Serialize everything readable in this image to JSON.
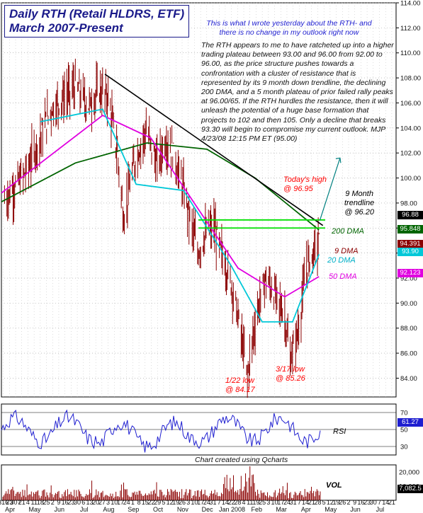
{
  "title": {
    "line1": "Daily RTH (Retail HLDRS, ETF)",
    "line2": "March 2007-Present"
  },
  "note": {
    "headline": "This is what I wrote yesterday about the RTH- and there is no change in my outlook right now",
    "body": "The RTH appears to me to have ratcheted up into a higher trading plateau between 93.00 and 96.00 from 92.00 to 96.00, as the price structure pushes towards a confrontation with a cluster of resistance that is represented by its 9 month down trendline, the declining 200 DMA, and a 5 month plateau of prior failed rally peaks at 96.00/65. If the RTH hurdles the resistance, then it will unleash the potential of a huge base formation that projects to 102 and then 105. Only a decline that breaks 93.30 will begin to compromise my current outlook.  MJP  4/23/08  12:15 PM ET (95.00)"
  },
  "annotations": {
    "todays_high": "Today's high\n@ 96.95",
    "trendline": "9 Month\ntrendline\n@ 96.20",
    "dma200": "200 DMA",
    "dma9": "9 DMA",
    "dma20": "20 DMA",
    "dma50": "50 DMA",
    "low1": "1/22 low\n@ 84.17",
    "low2": "3/17 low\n@ 85.26",
    "rsi": "RSI",
    "vol": "VOL"
  },
  "badges": {
    "last": "96.88",
    "dma200": "95.848",
    "dma9": "94.391",
    "dma20": "93.90",
    "dma50": "92.123",
    "rsi": "61.27",
    "vol": "7,082.5"
  },
  "credit": "Chart created using Qcharts",
  "colors": {
    "price": "#8b0000",
    "dma200": "#006400",
    "dma20": "#00c8d8",
    "dma50": "#e000e0",
    "dma9": "#000000",
    "trendline": "#000000",
    "resistance": "#00e000",
    "rsi": "#1f1fd0",
    "arrow": "#008080",
    "title": "#1a1a8a",
    "note_headline": "#1f1fd0",
    "annotation_red": "#ff0000"
  },
  "chart_data": {
    "type": "line",
    "title": "Daily RTH (Retail HLDRS, ETF)",
    "subtitle": "March 2007-Present",
    "y_axis": {
      "ticks": [
        84,
        86,
        88,
        90,
        92,
        94,
        96,
        98,
        100,
        102,
        104,
        106,
        108,
        110,
        112,
        114
      ],
      "range": [
        82.5,
        114
      ],
      "position": "right"
    },
    "x_axis": {
      "ticks": [
        "316",
        "23",
        "307",
        "21",
        "4",
        "11",
        "18",
        "25",
        "2",
        "9",
        "16",
        "23",
        "30",
        "6",
        "13",
        "20",
        "27",
        "3",
        "10",
        "17",
        "24",
        "1",
        "8",
        "15",
        "22",
        "29",
        "5",
        "12",
        "19",
        "26",
        "3",
        "10",
        "17",
        "24",
        "31",
        "7",
        "14",
        "22",
        "28",
        "4",
        "11",
        "19",
        "25",
        "3",
        "10",
        "17",
        "24",
        "31",
        "7",
        "14",
        "21",
        "28",
        "5",
        "12",
        "19",
        "26",
        "2",
        "9",
        "16",
        "23",
        "30",
        "7",
        "14",
        "21"
      ],
      "months": [
        "Apr",
        "May",
        "Jun",
        "Jul",
        "Aug",
        "Sep",
        "Oct",
        "Nov",
        "Dec",
        "Jan 2008",
        "Feb",
        "Mar",
        "Apr",
        "May",
        "Jun",
        "Jul"
      ],
      "range": [
        "2007-03-12",
        "2008-07-31"
      ]
    },
    "series": [
      {
        "name": "RTH daily close (approx)",
        "x": [
          "2007-03-16",
          "2007-04-13",
          "2007-05-15",
          "2007-06-01",
          "2007-06-15",
          "2007-07-02",
          "2007-07-16",
          "2007-07-27",
          "2007-08-08",
          "2007-08-16",
          "2007-08-31",
          "2007-09-14",
          "2007-09-28",
          "2007-10-08",
          "2007-10-19",
          "2007-11-05",
          "2007-11-19",
          "2007-11-30",
          "2007-12-10",
          "2007-12-20",
          "2008-01-04",
          "2008-01-15",
          "2008-01-22",
          "2008-02-01",
          "2008-02-14",
          "2008-02-28",
          "2008-03-10",
          "2008-03-17",
          "2008-03-28",
          "2008-04-07",
          "2008-04-15",
          "2008-04-23"
        ],
        "values": [
          98.2,
          100.5,
          105.5,
          106.5,
          107.3,
          105.8,
          107.0,
          106.5,
          102.0,
          96.8,
          101.5,
          103.8,
          101.0,
          103.0,
          102.0,
          98.0,
          94.0,
          95.5,
          96.0,
          94.0,
          91.0,
          87.0,
          84.2,
          88.5,
          92.0,
          90.5,
          89.0,
          85.3,
          88.0,
          93.0,
          94.0,
          95.0
        ]
      },
      {
        "name": "200 DMA",
        "x": [
          "2007-03-12",
          "2007-06-15",
          "2007-09-15",
          "2007-12-01",
          "2008-02-01",
          "2008-04-23"
        ],
        "values": [
          98.1,
          101.2,
          102.8,
          102.3,
          100.0,
          95.85
        ]
      },
      {
        "name": "50 DMA",
        "x": [
          "2007-03-12",
          "2007-07-20",
          "2007-09-20",
          "2007-11-20",
          "2008-01-10",
          "2008-03-10",
          "2008-04-23"
        ],
        "values": [
          98.8,
          105.0,
          103.2,
          97.5,
          92.8,
          90.5,
          92.12
        ]
      },
      {
        "name": "20 DMA",
        "x": [
          "2007-05-01",
          "2007-07-20",
          "2007-09-01",
          "2007-11-01",
          "2008-01-01",
          "2008-02-10",
          "2008-03-20",
          "2008-04-23"
        ],
        "values": [
          104.5,
          105.5,
          99.5,
          99.0,
          93.0,
          88.5,
          88.5,
          93.9
        ]
      },
      {
        "name": "9 Month trendline",
        "x": [
          "2007-07-23",
          "2008-04-28"
        ],
        "values": [
          108.3,
          96.2
        ]
      }
    ],
    "annotations": [
      {
        "date": "2008-01-22",
        "value": 84.17,
        "label": "1/22 low @ 84.17"
      },
      {
        "date": "2008-03-17",
        "value": 85.26,
        "label": "3/17 low @ 85.26"
      },
      {
        "date": "2008-04-23",
        "value": 96.95,
        "label": "Today's high @ 96.95"
      }
    ],
    "resistance_lines": [
      96.0,
      96.65
    ],
    "grid": true,
    "panels": [
      {
        "name": "RSI",
        "last": 61.27,
        "levels": [
          70,
          50,
          30
        ]
      },
      {
        "name": "VOL",
        "last": 7082.5,
        "ticks": [
          10000,
          20000
        ]
      }
    ]
  }
}
